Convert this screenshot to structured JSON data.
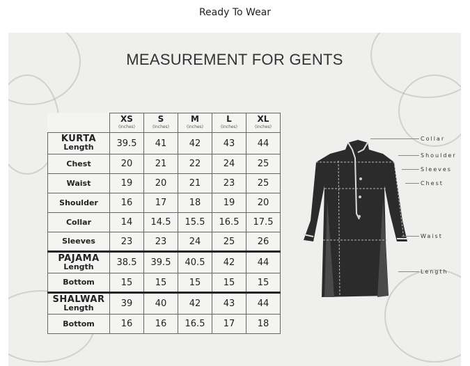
{
  "page_title": "Ready To Wear",
  "chart_heading": "MEASUREMENT FOR GENTS",
  "sizes": [
    {
      "label": "XS",
      "unit": "(inches)"
    },
    {
      "label": "S",
      "unit": "(inches)"
    },
    {
      "label": "M",
      "unit": "(inches)"
    },
    {
      "label": "L",
      "unit": "(inches)"
    },
    {
      "label": "XL",
      "unit": "(inches)"
    }
  ],
  "rows": [
    {
      "section": "KURTA",
      "label": "Length",
      "values": [
        "39.5",
        "41",
        "42",
        "43",
        "44"
      ]
    },
    {
      "section": "",
      "label": "Chest",
      "values": [
        "20",
        "21",
        "22",
        "24",
        "25"
      ]
    },
    {
      "section": "",
      "label": "Waist",
      "values": [
        "19",
        "20",
        "21",
        "23",
        "25"
      ]
    },
    {
      "section": "",
      "label": "Shoulder",
      "values": [
        "16",
        "17",
        "18",
        "19",
        "20"
      ]
    },
    {
      "section": "",
      "label": "Collar",
      "values": [
        "14",
        "14.5",
        "15.5",
        "16.5",
        "17.5"
      ]
    },
    {
      "section": "",
      "label": "Sleeves",
      "values": [
        "23",
        "23",
        "24",
        "25",
        "26"
      ]
    },
    {
      "section": "PAJAMA",
      "label": "Length",
      "values": [
        "38.5",
        "39.5",
        "40.5",
        "42",
        "44"
      ]
    },
    {
      "section": "",
      "label": "Bottom",
      "values": [
        "15",
        "15",
        "15",
        "15",
        "15"
      ]
    },
    {
      "section": "SHALWAR",
      "label": "Length",
      "values": [
        "39",
        "40",
        "42",
        "43",
        "44"
      ]
    },
    {
      "section": "",
      "label": "Bottom",
      "values": [
        "16",
        "16",
        "16.5",
        "17",
        "18"
      ]
    }
  ],
  "diagram_labels": {
    "collar": "Collar",
    "shoulder": "Shoulder",
    "sleeves": "Sleeves",
    "chest": "Chest",
    "waist": "Waist",
    "length": "Length"
  }
}
